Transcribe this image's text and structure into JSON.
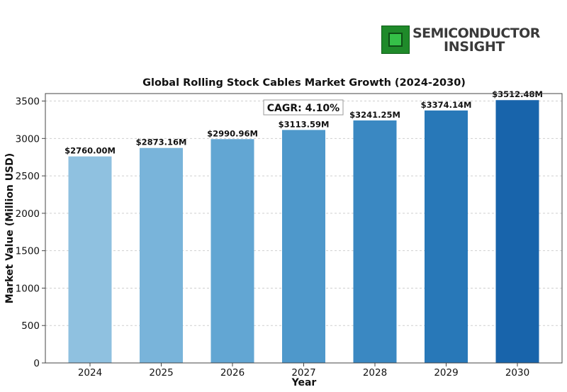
{
  "logo": {
    "line1": "SEMICONDUCTOR",
    "line2": "INSIGHT"
  },
  "chart_data": {
    "type": "bar",
    "title": "Global Rolling Stock Cables Market Growth (2024-2030)",
    "xlabel": "Year",
    "ylabel": "Market Value (Million USD)",
    "categories": [
      "2024",
      "2025",
      "2026",
      "2027",
      "2028",
      "2029",
      "2030"
    ],
    "values": [
      2760.0,
      2873.16,
      2990.96,
      3113.59,
      3241.25,
      3374.14,
      3512.48
    ],
    "data_labels": [
      "$2760.00M",
      "$2873.16M",
      "$2990.96M",
      "$3113.59M",
      "$3241.25M",
      "$3374.14M",
      "$3512.48M"
    ],
    "annotation": "CAGR: 4.10%",
    "ylim": [
      0,
      3600
    ],
    "yticks": [
      0,
      500,
      1000,
      1500,
      2000,
      2500,
      3000,
      3500
    ],
    "grid": true,
    "colors": [
      "#8fc1e0",
      "#79b4da",
      "#62a6d3",
      "#4e98cb",
      "#3a88c2",
      "#2878b8",
      "#1864ab"
    ]
  }
}
